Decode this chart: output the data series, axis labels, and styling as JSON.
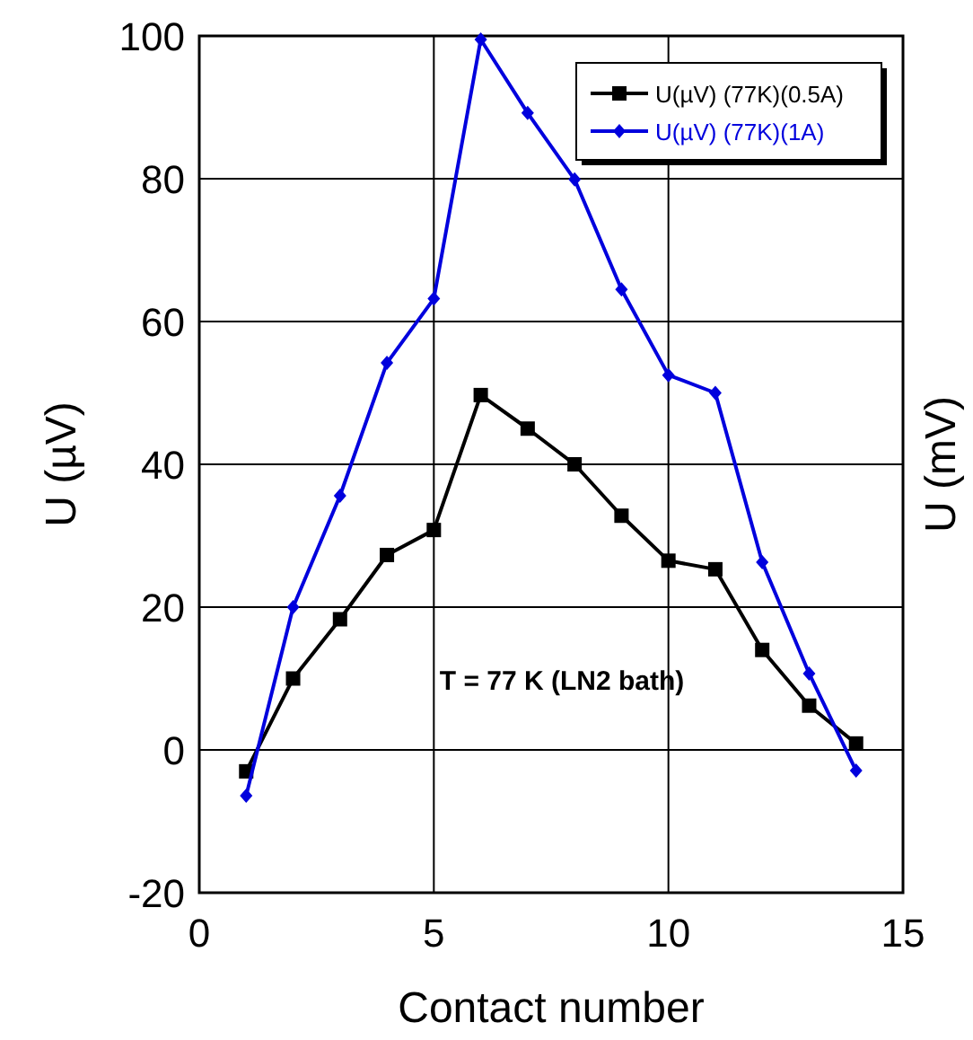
{
  "chart_data": {
    "type": "line",
    "xlabel": "Contact number",
    "ylabel": "U (µV)",
    "xlim": [
      0,
      15
    ],
    "xticks": [
      0,
      5,
      10,
      15
    ],
    "ylim": [
      -20,
      100
    ],
    "yticks": [
      -20,
      0,
      20,
      40,
      60,
      80,
      100
    ],
    "grid": true,
    "legend": "top right",
    "line_style": "solid",
    "x": [
      1,
      2,
      3,
      4,
      5,
      6,
      7,
      8,
      9,
      10,
      11,
      12,
      13,
      14
    ],
    "series": [
      {
        "name": "U(µV) (77K)(0.5A)",
        "color": "#000000",
        "marker": "square",
        "values": [
          -3,
          10,
          18.3,
          27.3,
          30.8,
          49.7,
          45,
          40,
          32.8,
          26.5,
          25.3,
          14,
          6.2,
          0.9
        ]
      },
      {
        "name": "U(µV) (77K)(1A)",
        "color": "#0000dd",
        "marker": "diamond",
        "values": [
          -6.4,
          20,
          35.6,
          54.2,
          63.2,
          99.5,
          89.2,
          79.9,
          64.5,
          52.5,
          50,
          26.3,
          10.7,
          -2.9
        ]
      }
    ],
    "annotations": [
      "T = 77 K (LN2 bath)",
      "U (mV)"
    ]
  }
}
